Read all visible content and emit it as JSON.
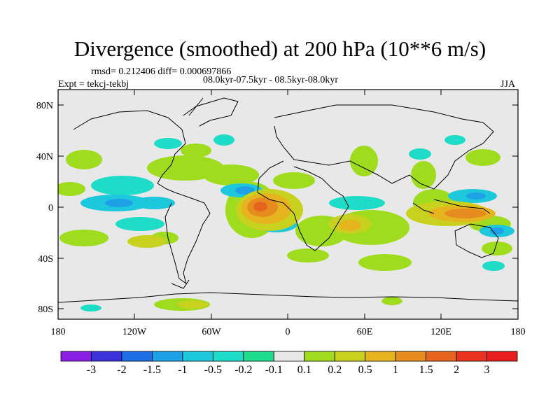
{
  "title": "Divergence (smoothed) at 200 hPa (10**6 m/s)",
  "stats": "rmsd= 0.212406 diff= 0.000697866",
  "periods": "08.0kyr-07.5kyr - 08.5kyr-08.0kyr",
  "experiment": "Expt = tekcj-tekbj",
  "season": "JJA",
  "colors": {
    "background": "#e8e8e8",
    "coast": "#000000"
  },
  "axes": {
    "lat_ticks": [
      "80N",
      "40N",
      "0",
      "40S",
      "80S"
    ],
    "lon_ticks": [
      "180",
      "120W",
      "60W",
      "0",
      "60E",
      "120E",
      "180"
    ]
  },
  "colorbar": {
    "labels": [
      "-3",
      "-2",
      "-1.5",
      "-1",
      "-0.5",
      "-0.2",
      "-0.1",
      "0.1",
      "0.2",
      "0.5",
      "1",
      "1.5",
      "2",
      "3"
    ],
    "colors": [
      "#8a1ee6",
      "#3c32dc",
      "#1e6ee6",
      "#1ea0e6",
      "#1ec8dc",
      "#1edcc8",
      "#1edc8c",
      "#e8e8e8",
      "#a0dc1e",
      "#c8d21e",
      "#e6b41e",
      "#e68c1e",
      "#e6641e",
      "#e6321e",
      "#e61e1e"
    ]
  }
}
